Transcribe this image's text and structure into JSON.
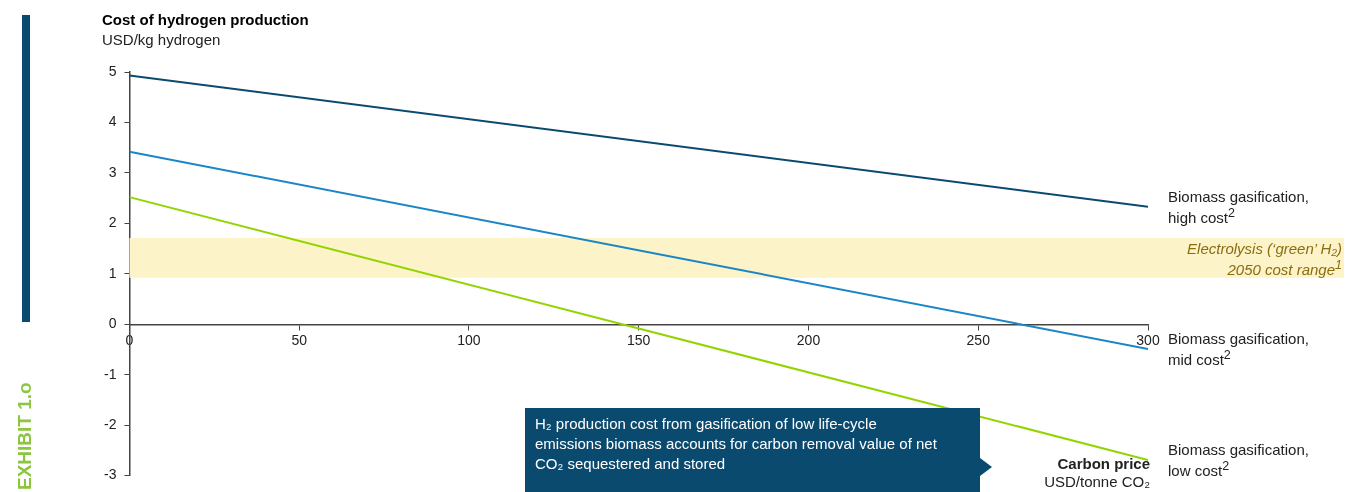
{
  "chart_data": {
    "type": "line",
    "title": "Cost of hydrogen production",
    "ylabel": "USD/kg hydrogen",
    "xlabel": "Carbon price\nUSD/tonne CO₂",
    "x": [
      0,
      300
    ],
    "series": [
      {
        "name": "Biomass gasification, high cost$^{2}$",
        "color": "#0b4a6f",
        "values": [
          4.93,
          2.33
        ]
      },
      {
        "name": "Biomass gasification, mid cost$^{2}$",
        "color": "#1a86c7",
        "values": [
          3.42,
          -0.49
        ]
      },
      {
        "name": "Biomass gasification, low cost$^{2}$",
        "color": "#92d400",
        "values": [
          2.52,
          -2.69
        ]
      }
    ],
    "xlim": [
      0,
      300
    ],
    "xticks": [
      0,
      50,
      100,
      150,
      200,
      250,
      300
    ],
    "ylim": [
      -3,
      5
    ],
    "yticks": [
      -3,
      -2,
      -1,
      0,
      1,
      2,
      3,
      4,
      5
    ],
    "bands": [
      {
        "axis": "y",
        "from": 0.92,
        "to": 1.71,
        "label": "Electrolysis (‘green’ H₂) 2050 cost range$^{1}$",
        "color": "#fdf3c9"
      }
    ],
    "annotations": [
      "EXHIBIT 1.o",
      "H₂ production cost from gasification of low life-cycle emissions biomass accounts for carbon removal value of net CO₂ sequestered and stored"
    ],
    "grid": false,
    "legend": false,
    "marker": "none",
    "line_style": "solid"
  }
}
